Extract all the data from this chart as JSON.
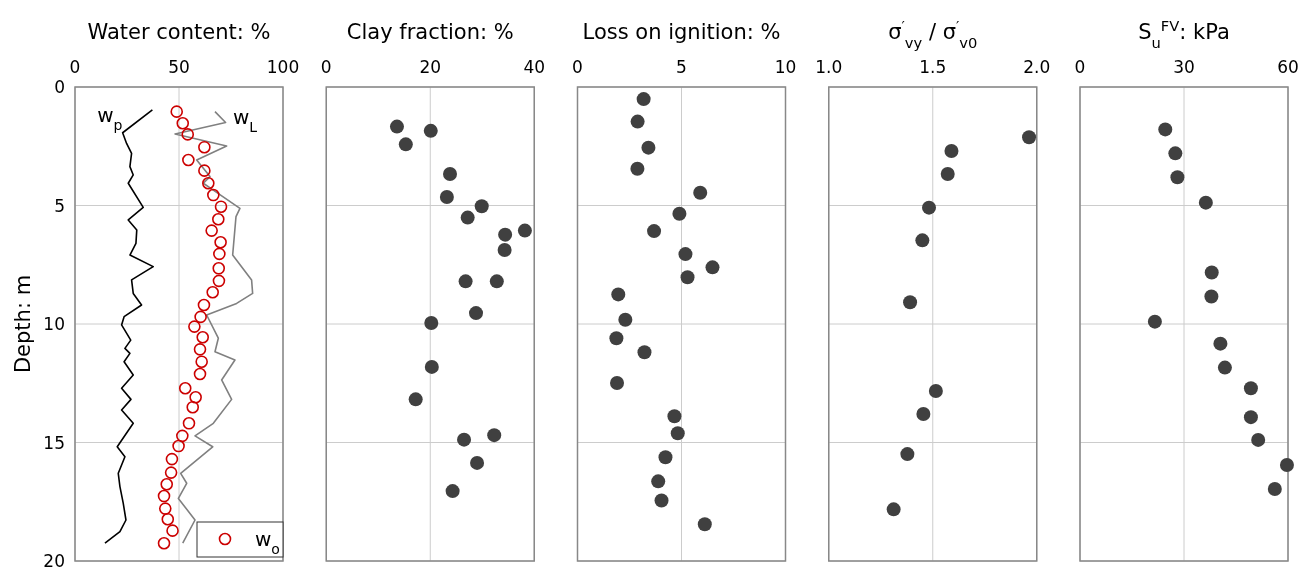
{
  "chart_data": [
    {
      "type": "scatter",
      "xlabel": "Water content: %",
      "ylabel": "Depth: m",
      "xlim": [
        0,
        100
      ],
      "xticks": [
        0,
        50,
        100
      ],
      "ylim": [
        20,
        0
      ],
      "yticks": [
        0,
        5,
        10,
        15,
        20
      ],
      "grid": true,
      "legend": "bottom right",
      "series": [
        {
          "type": "line",
          "name": "w$_{p}$",
          "color": "#000000",
          "x": [
            37.2,
            22.9,
            24.8,
            27.2,
            26.4,
            28.0,
            25.6,
            32.8,
            25.6,
            29.7,
            29.3,
            26.4,
            37.6,
            27.2,
            28.0,
            32.0,
            23.6,
            22.4,
            26.8,
            24.0,
            26.4,
            23.6,
            28.0,
            22.4,
            26.9,
            22.4,
            28.0,
            20.3,
            24.0,
            20.8,
            21.6,
            23.2,
            24.5,
            21.6,
            14.4
          ],
          "values": [
            0.97,
            1.93,
            2.38,
            2.8,
            3.36,
            3.71,
            4.06,
            5.08,
            5.61,
            6.03,
            6.6,
            7.09,
            7.58,
            8.14,
            8.71,
            9.2,
            9.69,
            10.04,
            10.68,
            11.03,
            11.24,
            11.59,
            12.15,
            12.71,
            13.18,
            13.63,
            14.19,
            15.18,
            15.6,
            16.3,
            16.86,
            17.57,
            18.27,
            18.76,
            19.25
          ]
        },
        {
          "type": "line",
          "name": "w$_{L}$",
          "color": "#808080",
          "x": [
            67.3,
            72.4,
            48.1,
            72.9,
            58.5,
            64.9,
            61.7,
            66.5,
            79.3,
            77.4,
            75.8,
            84.9,
            85.4,
            77.7,
            63.3,
            68.9,
            67.3,
            76.9,
            70.5,
            75.3,
            66.5,
            57.7,
            66.2,
            50.8,
            53.7,
            49.7,
            57.7,
            51.8
          ],
          "values": [
            1.04,
            1.5,
            1.98,
            2.49,
            3.08,
            3.78,
            4.06,
            4.35,
            5.12,
            5.47,
            7.09,
            8.14,
            8.71,
            9.13,
            9.62,
            10.6,
            11.17,
            11.52,
            12.36,
            13.18,
            14.19,
            14.72,
            15.18,
            16.3,
            16.72,
            17.36,
            18.27,
            19.25
          ]
        },
        {
          "name": "w$_{o}$",
          "color": "#cc0000",
          "marker": "circle",
          "x": [
            48.9,
            51.8,
            54.2,
            62.2,
            54.5,
            62.2,
            64.1,
            66.5,
            70.2,
            68.9,
            65.7,
            70.0,
            69.4,
            69.1,
            69.2,
            66.2,
            62.0,
            60.4,
            57.4,
            61.4,
            60.1,
            60.9,
            60.1,
            53.0,
            58.0,
            56.6,
            54.8,
            51.6,
            49.8,
            46.6,
            46.2,
            44.1,
            42.8,
            43.4,
            44.6,
            46.9,
            42.8
          ],
          "values": [
            1.04,
            1.53,
            2.0,
            2.54,
            3.08,
            3.53,
            4.06,
            4.56,
            5.05,
            5.58,
            6.06,
            6.55,
            7.04,
            7.65,
            8.18,
            8.66,
            9.2,
            9.7,
            10.11,
            10.56,
            11.07,
            11.59,
            12.11,
            12.71,
            13.09,
            13.51,
            14.19,
            14.72,
            15.15,
            15.7,
            16.27,
            16.76,
            17.26,
            17.79,
            18.24,
            18.72,
            19.25
          ]
        }
      ]
    },
    {
      "type": "scatter",
      "xlabel": "Clay fraction: %",
      "xlim": [
        0,
        40
      ],
      "xticks": [
        0,
        20,
        40
      ],
      "ylim": [
        20,
        0
      ],
      "yticks": [
        0,
        5,
        10,
        15,
        20
      ],
      "grid": true,
      "tick_labels": "x",
      "marker": "circle",
      "series": [
        {
          "color": "#404040",
          "x": [
            13.6,
            20.1,
            15.3,
            23.8,
            23.2,
            29.9,
            27.2,
            38.2,
            34.4,
            34.3,
            26.8,
            32.8,
            28.8,
            20.2,
            20.3,
            17.2,
            32.3,
            26.5,
            29.0,
            24.3
          ],
          "values": [
            1.67,
            1.85,
            2.42,
            3.67,
            4.64,
            5.03,
            5.51,
            6.06,
            6.23,
            6.88,
            8.2,
            8.2,
            9.54,
            9.96,
            11.81,
            13.18,
            14.69,
            14.88,
            15.86,
            17.05
          ]
        }
      ]
    },
    {
      "type": "scatter",
      "xlabel": "Loss on ignition: %",
      "xlim": [
        0,
        10
      ],
      "xticks": [
        0,
        5,
        10
      ],
      "ylim": [
        20,
        0
      ],
      "yticks": [
        0,
        5,
        10,
        15,
        20
      ],
      "grid": true,
      "tick_labels": "x",
      "marker": "circle",
      "series": [
        {
          "color": "#404040",
          "x": [
            3.18,
            2.89,
            3.41,
            2.88,
            5.9,
            4.9,
            3.68,
            5.19,
            6.49,
            5.29,
            1.96,
            2.3,
            1.87,
            3.22,
            1.9,
            4.66,
            4.82,
            4.23,
            3.88,
            4.04,
            6.12
          ],
          "values": [
            0.51,
            1.46,
            2.56,
            3.45,
            4.46,
            5.35,
            6.08,
            7.05,
            7.61,
            8.03,
            8.75,
            9.82,
            10.6,
            11.19,
            12.49,
            13.89,
            14.61,
            15.62,
            16.64,
            17.45,
            18.45
          ]
        }
      ]
    },
    {
      "type": "scatter",
      "xlabel": "σ$^{′}$$_{vy}$ / σ$^{′}$$_{v0}$",
      "xlim": [
        1.0,
        2.0
      ],
      "xticks": [
        {
          "value": 1.0,
          "label": "1.0"
        },
        1.5,
        {
          "value": 2.0,
          "label": "2.0"
        }
      ],
      "ylim": [
        20,
        0
      ],
      "yticks": [
        0,
        5,
        10,
        15,
        20
      ],
      "grid": true,
      "tick_labels": "x",
      "marker": "circle",
      "series": [
        {
          "color": "#404040",
          "x": [
            1.963,
            1.59,
            1.572,
            1.482,
            1.45,
            1.391,
            1.515,
            1.455,
            1.378,
            1.312
          ],
          "values": [
            2.12,
            2.7,
            3.67,
            5.09,
            6.47,
            9.08,
            12.83,
            13.8,
            15.49,
            17.82
          ]
        }
      ]
    },
    {
      "type": "scatter",
      "xlabel": "S$_{u}$$^{FV}$: kPa",
      "xlim": [
        0,
        60
      ],
      "xticks": [
        0,
        30,
        60
      ],
      "ylim": [
        20,
        0
      ],
      "yticks": [
        0,
        5,
        10,
        15,
        20
      ],
      "grid": true,
      "tick_labels": "x",
      "marker": "circle",
      "series": [
        {
          "color": "#404040",
          "x": [
            24.6,
            27.5,
            28.1,
            36.3,
            38.0,
            37.9,
            21.6,
            40.5,
            41.8,
            49.3,
            49.3,
            51.4,
            59.7,
            56.2
          ],
          "values": [
            1.79,
            2.8,
            3.81,
            4.88,
            7.83,
            8.84,
            9.9,
            10.83,
            11.84,
            12.71,
            13.93,
            14.89,
            15.95,
            16.96
          ]
        }
      ]
    }
  ]
}
